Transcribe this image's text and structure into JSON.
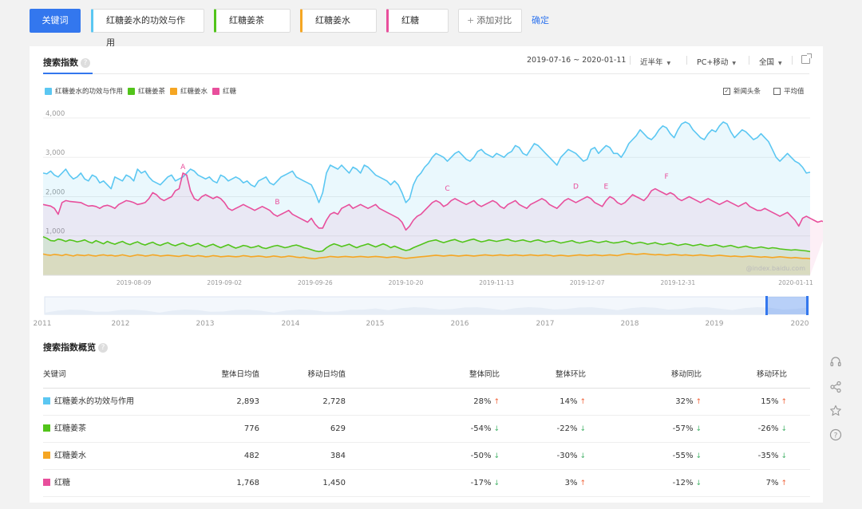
{
  "topbar": {
    "main_label": "关键词",
    "keywords": [
      {
        "label": "红糖姜水的功效与作用",
        "color": "#5bc7f2"
      },
      {
        "label": "红糖姜茶",
        "color": "#52c41a"
      },
      {
        "label": "红糖姜水",
        "color": "#f5a623"
      },
      {
        "label": "红糖",
        "color": "#e84f9c"
      }
    ],
    "add_label": "添加对比",
    "confirm_label": "确定"
  },
  "panel": {
    "title": "搜索指数",
    "help_glyph": "?",
    "date_range": "2019-07-16 ~ 2020-01-11",
    "period": "近半年",
    "device": "PC+移动",
    "region": "全国",
    "news_check": "新闻头条",
    "news_check_mark": "✓",
    "avg_check": "平均值",
    "export_icon": "export-icon",
    "watermark": "@index.baidu.com"
  },
  "colors": {
    "accent": "#3377ee",
    "up": "#f0663e",
    "down": "#47b36b"
  },
  "chart_data": {
    "type": "area",
    "y_ticks": [
      "4,000",
      "3,000",
      "2,000",
      "1,000"
    ],
    "ylim": [
      0,
      4100
    ],
    "x_ticks": [
      "2019-08-09",
      "2019-09-02",
      "2019-09-26",
      "2019-10-20",
      "2019-11-13",
      "2019-12-07",
      "2019-12-31",
      "2020-01-11"
    ],
    "annotations": [
      {
        "label": "A",
        "day": 37,
        "value": 2600
      },
      {
        "label": "B",
        "day": 62,
        "value": 1700
      },
      {
        "label": "C",
        "day": 107,
        "value": 2050
      },
      {
        "label": "D",
        "day": 141,
        "value": 2100
      },
      {
        "label": "E",
        "day": 149,
        "value": 2100
      },
      {
        "label": "F",
        "day": 165,
        "value": 2350
      }
    ],
    "series": [
      {
        "name": "红糖姜水的功效与作用",
        "color": "#5bc7f2",
        "values": [
          2600,
          2580,
          2650,
          2550,
          2500,
          2600,
          2700,
          2550,
          2450,
          2500,
          2600,
          2450,
          2400,
          2550,
          2500,
          2350,
          2400,
          2300,
          2200,
          2500,
          2450,
          2400,
          2550,
          2500,
          2400,
          2700,
          2600,
          2650,
          2500,
          2400,
          2350,
          2300,
          2400,
          2500,
          2550,
          2400,
          2450,
          2500,
          2600,
          2700,
          2650,
          2550,
          2500,
          2450,
          2500,
          2400,
          2350,
          2550,
          2500,
          2400,
          2450,
          2500,
          2450,
          2350,
          2400,
          2300,
          2250,
          2400,
          2450,
          2500,
          2350,
          2300,
          2400,
          2500,
          2550,
          2600,
          2650,
          2500,
          2450,
          2400,
          2350,
          2300,
          2100,
          1850,
          2100,
          2600,
          2800,
          2750,
          2700,
          2800,
          2700,
          2600,
          2750,
          2700,
          2600,
          2800,
          2750,
          2650,
          2550,
          2500,
          2450,
          2400,
          2300,
          2400,
          2300,
          2100,
          1850,
          1950,
          2300,
          2500,
          2600,
          2750,
          2850,
          3000,
          3100,
          3050,
          3000,
          2900,
          3000,
          3100,
          3150,
          3050,
          2950,
          2900,
          3000,
          3150,
          3200,
          3100,
          3050,
          3000,
          3100,
          3050,
          3000,
          3100,
          3150,
          3300,
          3250,
          3100,
          3050,
          3200,
          3350,
          3300,
          3200,
          3100,
          3000,
          2900,
          2800,
          3000,
          3100,
          3200,
          3150,
          3100,
          3000,
          2900,
          2950,
          3200,
          3250,
          3100,
          3200,
          3300,
          3250,
          3100,
          3100,
          3000,
          3150,
          3350,
          3450,
          3550,
          3700,
          3600,
          3500,
          3450,
          3550,
          3700,
          3800,
          3750,
          3600,
          3500,
          3700,
          3850,
          3900,
          3850,
          3700,
          3600,
          3500,
          3450,
          3600,
          3700,
          3650,
          3800,
          3900,
          3850,
          3650,
          3500,
          3600,
          3700,
          3650,
          3550,
          3450,
          3500,
          3600,
          3500,
          3400,
          3200,
          3000,
          2900,
          3000,
          3100,
          3000,
          2900,
          2850,
          2750,
          2600,
          2620
        ]
      },
      {
        "name": "红糖姜茶",
        "color": "#52c41a",
        "values": [
          980,
          940,
          880,
          870,
          920,
          900,
          860,
          900,
          880,
          850,
          870,
          900,
          850,
          820,
          880,
          840,
          800,
          860,
          820,
          790,
          830,
          860,
          810,
          780,
          820,
          850,
          800,
          770,
          810,
          840,
          790,
          760,
          800,
          830,
          780,
          750,
          790,
          820,
          770,
          740,
          780,
          810,
          760,
          720,
          760,
          790,
          740,
          700,
          740,
          780,
          730,
          690,
          720,
          760,
          740,
          700,
          720,
          750,
          700,
          680,
          710,
          740,
          760,
          730,
          700,
          720,
          750,
          770,
          740,
          700,
          680,
          650,
          620,
          600,
          620,
          700,
          760,
          800,
          770,
          730,
          760,
          790,
          740,
          700,
          740,
          770,
          800,
          760,
          720,
          760,
          800,
          760,
          700,
          740,
          700,
          660,
          630,
          650,
          700,
          740,
          780,
          820,
          860,
          880,
          900,
          860,
          830,
          860,
          890,
          910,
          870,
          840,
          870,
          900,
          920,
          880,
          850,
          870,
          900,
          880,
          860,
          880,
          900,
          920,
          880,
          860,
          880,
          900,
          870,
          850,
          880,
          900,
          870,
          840,
          860,
          880,
          850,
          820,
          840,
          860,
          880,
          840,
          820,
          840,
          860,
          880,
          850,
          830,
          850,
          870,
          840,
          820,
          830,
          850,
          870,
          840,
          800,
          820,
          840,
          820,
          790,
          810,
          830,
          800,
          780,
          800,
          820,
          790,
          760,
          780,
          800,
          780,
          750,
          770,
          790,
          760,
          740,
          760,
          780,
          750,
          720,
          740,
          760,
          730,
          700,
          720,
          740,
          710,
          690,
          700,
          720,
          700,
          680,
          700,
          690,
          670,
          660,
          650,
          640,
          650,
          640,
          630,
          620,
          600
        ]
      },
      {
        "name": "红糖姜水",
        "color": "#f5a623",
        "values": [
          540,
          520,
          510,
          530,
          520,
          500,
          530,
          510,
          490,
          520,
          510,
          500,
          520,
          500,
          490,
          510,
          520,
          500,
          510,
          490,
          500,
          520,
          500,
          480,
          500,
          520,
          510,
          490,
          500,
          520,
          510,
          490,
          500,
          510,
          500,
          490,
          480,
          500,
          510,
          490,
          480,
          500,
          490,
          470,
          480,
          500,
          490,
          470,
          480,
          490,
          480,
          470,
          480,
          500,
          490,
          470,
          480,
          490,
          480,
          460,
          470,
          490,
          480,
          460,
          470,
          490,
          480,
          460,
          450,
          460,
          440,
          430,
          420,
          440,
          450,
          460,
          480,
          470,
          460,
          470,
          480,
          470,
          460,
          470,
          480,
          470,
          460,
          470,
          480,
          470,
          460,
          450,
          460,
          470,
          460,
          440,
          430,
          440,
          450,
          460,
          470,
          480,
          490,
          500,
          510,
          500,
          490,
          500,
          510,
          500,
          490,
          500,
          510,
          500,
          490,
          500,
          510,
          520,
          510,
          500,
          510,
          520,
          510,
          500,
          510,
          520,
          510,
          500,
          510,
          520,
          510,
          500,
          510,
          520,
          510,
          490,
          500,
          510,
          500,
          490,
          500,
          510,
          520,
          510,
          500,
          510,
          520,
          510,
          500,
          510,
          520,
          510,
          500,
          520,
          540,
          550,
          540,
          530,
          540,
          550,
          540,
          530,
          520,
          530,
          520,
          510,
          520,
          530,
          520,
          510,
          520,
          510,
          500,
          510,
          520,
          510,
          500,
          490,
          500,
          510,
          500,
          490,
          480,
          490,
          480,
          470,
          480,
          490,
          480,
          470,
          460,
          470,
          460,
          450,
          460,
          470,
          460,
          450,
          440,
          450,
          440,
          430,
          430,
          420
        ]
      },
      {
        "name": "红糖",
        "color": "#e84f9c",
        "values": [
          1800,
          1780,
          1760,
          1700,
          1550,
          1850,
          1900,
          1880,
          1870,
          1860,
          1850,
          1800,
          1760,
          1770,
          1750,
          1700,
          1760,
          1780,
          1750,
          1700,
          1800,
          1850,
          1900,
          1880,
          1850,
          1800,
          1820,
          1850,
          1950,
          2100,
          2050,
          1950,
          1900,
          1950,
          2000,
          2150,
          2200,
          2600,
          2550,
          2150,
          1950,
          1900,
          2000,
          2050,
          2000,
          1950,
          2000,
          1950,
          1850,
          1700,
          1650,
          1700,
          1750,
          1800,
          1750,
          1700,
          1650,
          1700,
          1750,
          1700,
          1650,
          1550,
          1500,
          1550,
          1600,
          1650,
          1550,
          1500,
          1450,
          1400,
          1350,
          1450,
          1300,
          1200,
          1200,
          1400,
          1550,
          1600,
          1550,
          1700,
          1750,
          1800,
          1700,
          1750,
          1800,
          1750,
          1700,
          1750,
          1800,
          1700,
          1650,
          1600,
          1550,
          1500,
          1450,
          1350,
          1150,
          1250,
          1400,
          1500,
          1550,
          1650,
          1750,
          1850,
          1900,
          1850,
          1750,
          1800,
          1900,
          1950,
          1900,
          1850,
          1800,
          1850,
          1900,
          1800,
          1750,
          1800,
          1850,
          1900,
          1850,
          1750,
          1700,
          1800,
          1850,
          1900,
          1800,
          1750,
          1700,
          1800,
          1850,
          1900,
          1950,
          1900,
          1800,
          1750,
          1700,
          1800,
          1900,
          1950,
          1900,
          1850,
          1900,
          1950,
          2000,
          1950,
          1850,
          1800,
          1750,
          1900,
          2000,
          1950,
          1850,
          1800,
          1850,
          1950,
          2050,
          2000,
          1950,
          1900,
          2000,
          2150,
          2200,
          2150,
          2100,
          2050,
          2100,
          2050,
          1950,
          1900,
          1950,
          2000,
          1950,
          1900,
          1850,
          1900,
          1950,
          1900,
          1850,
          1800,
          1850,
          1900,
          1850,
          1800,
          1750,
          1800,
          1850,
          1750,
          1700,
          1650,
          1650,
          1700,
          1650,
          1600,
          1550,
          1500,
          1550,
          1600,
          1500,
          1400,
          1250,
          1450,
          1500,
          1450,
          1400,
          1350,
          1380,
          1350,
          1300
        ]
      }
    ]
  },
  "navigator": {
    "years": [
      "2011",
      "2012",
      "2013",
      "2014",
      "2015",
      "2016",
      "2017",
      "2018",
      "2019",
      "2020"
    ]
  },
  "overview": {
    "title": "搜索指数概览",
    "help_glyph": "?",
    "headers": [
      "关键词",
      "整体日均值",
      "移动日均值",
      "整体同比",
      "整体环比",
      "移动同比",
      "移动环比"
    ],
    "rows": [
      {
        "name": "红糖姜水的功效与作用",
        "color": "#5bc7f2",
        "overall_avg": "2,893",
        "mobile_avg": "2,728",
        "cells": [
          {
            "v": "28%",
            "dir": "up"
          },
          {
            "v": "14%",
            "dir": "up"
          },
          {
            "v": "32%",
            "dir": "up"
          },
          {
            "v": "15%",
            "dir": "up"
          }
        ]
      },
      {
        "name": "红糖姜茶",
        "color": "#52c41a",
        "overall_avg": "776",
        "mobile_avg": "629",
        "cells": [
          {
            "v": "-54%",
            "dir": "down"
          },
          {
            "v": "-22%",
            "dir": "down"
          },
          {
            "v": "-57%",
            "dir": "down"
          },
          {
            "v": "-26%",
            "dir": "down"
          }
        ]
      },
      {
        "name": "红糖姜水",
        "color": "#f5a623",
        "overall_avg": "482",
        "mobile_avg": "384",
        "cells": [
          {
            "v": "-50%",
            "dir": "down"
          },
          {
            "v": "-30%",
            "dir": "down"
          },
          {
            "v": "-55%",
            "dir": "down"
          },
          {
            "v": "-35%",
            "dir": "down"
          }
        ]
      },
      {
        "name": "红糖",
        "color": "#e84f9c",
        "overall_avg": "1,768",
        "mobile_avg": "1,450",
        "cells": [
          {
            "v": "-17%",
            "dir": "down"
          },
          {
            "v": "3%",
            "dir": "up"
          },
          {
            "v": "-12%",
            "dir": "down"
          },
          {
            "v": "7%",
            "dir": "up"
          }
        ]
      }
    ],
    "up_glyph": "↑",
    "down_glyph": "↓"
  },
  "side_icons": [
    "headset-icon",
    "share-icon",
    "star-icon",
    "help-icon"
  ]
}
